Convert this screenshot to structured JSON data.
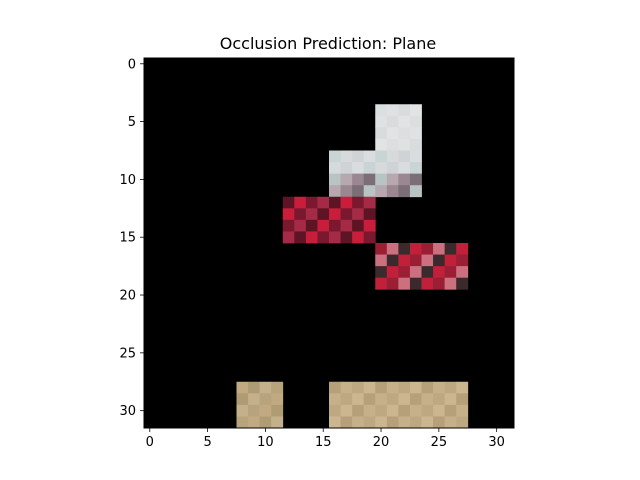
{
  "chart_data": {
    "type": "heatmap",
    "title": "Occlusion Prediction: Plane",
    "xlabel": "",
    "ylabel": "",
    "grid_size": [
      32,
      32
    ],
    "xlim": [
      -0.5,
      31.5
    ],
    "ylim": [
      31.5,
      -0.5
    ],
    "x_ticks": [
      0,
      5,
      10,
      15,
      20,
      25,
      30
    ],
    "y_ticks": [
      0,
      5,
      10,
      15,
      20,
      25,
      30
    ],
    "background_color": "#000000",
    "visible_regions": [
      {
        "rows": [
          4,
          7
        ],
        "cols": [
          20,
          23
        ],
        "colors": [
          "#dcdfe0",
          "#e2e4e4",
          "#d8dcdd",
          "#dfe1e2"
        ]
      },
      {
        "rows": [
          8,
          9
        ],
        "cols": [
          16,
          23
        ],
        "colors": [
          "#d6dadb",
          "#c9d4d4",
          "#dadddf",
          "#cfd3d6"
        ]
      },
      {
        "rows": [
          10,
          11
        ],
        "cols": [
          16,
          23
        ],
        "colors": [
          "#b8c3c3",
          "#7c6e76",
          "#9b8790",
          "#b6a8ae"
        ]
      },
      {
        "rows": [
          12,
          15
        ],
        "cols": [
          12,
          19
        ],
        "colors": [
          "#a52a45",
          "#7a1830",
          "#c81e3c",
          "#5d1424"
        ]
      },
      {
        "rows": [
          16,
          19
        ],
        "cols": [
          20,
          27
        ],
        "colors": [
          "#9a1f35",
          "#c0203a",
          "#3a2a2c",
          "#cc7080"
        ]
      },
      {
        "rows": [
          28,
          31
        ],
        "cols": [
          8,
          11
        ],
        "colors": [
          "#b09c74",
          "#c1a982",
          "#b8a47c",
          "#c4b08a"
        ]
      },
      {
        "rows": [
          28,
          31
        ],
        "cols": [
          16,
          27
        ],
        "colors": [
          "#bea882",
          "#c6b08a",
          "#b7a079",
          "#cbb690"
        ]
      }
    ]
  }
}
